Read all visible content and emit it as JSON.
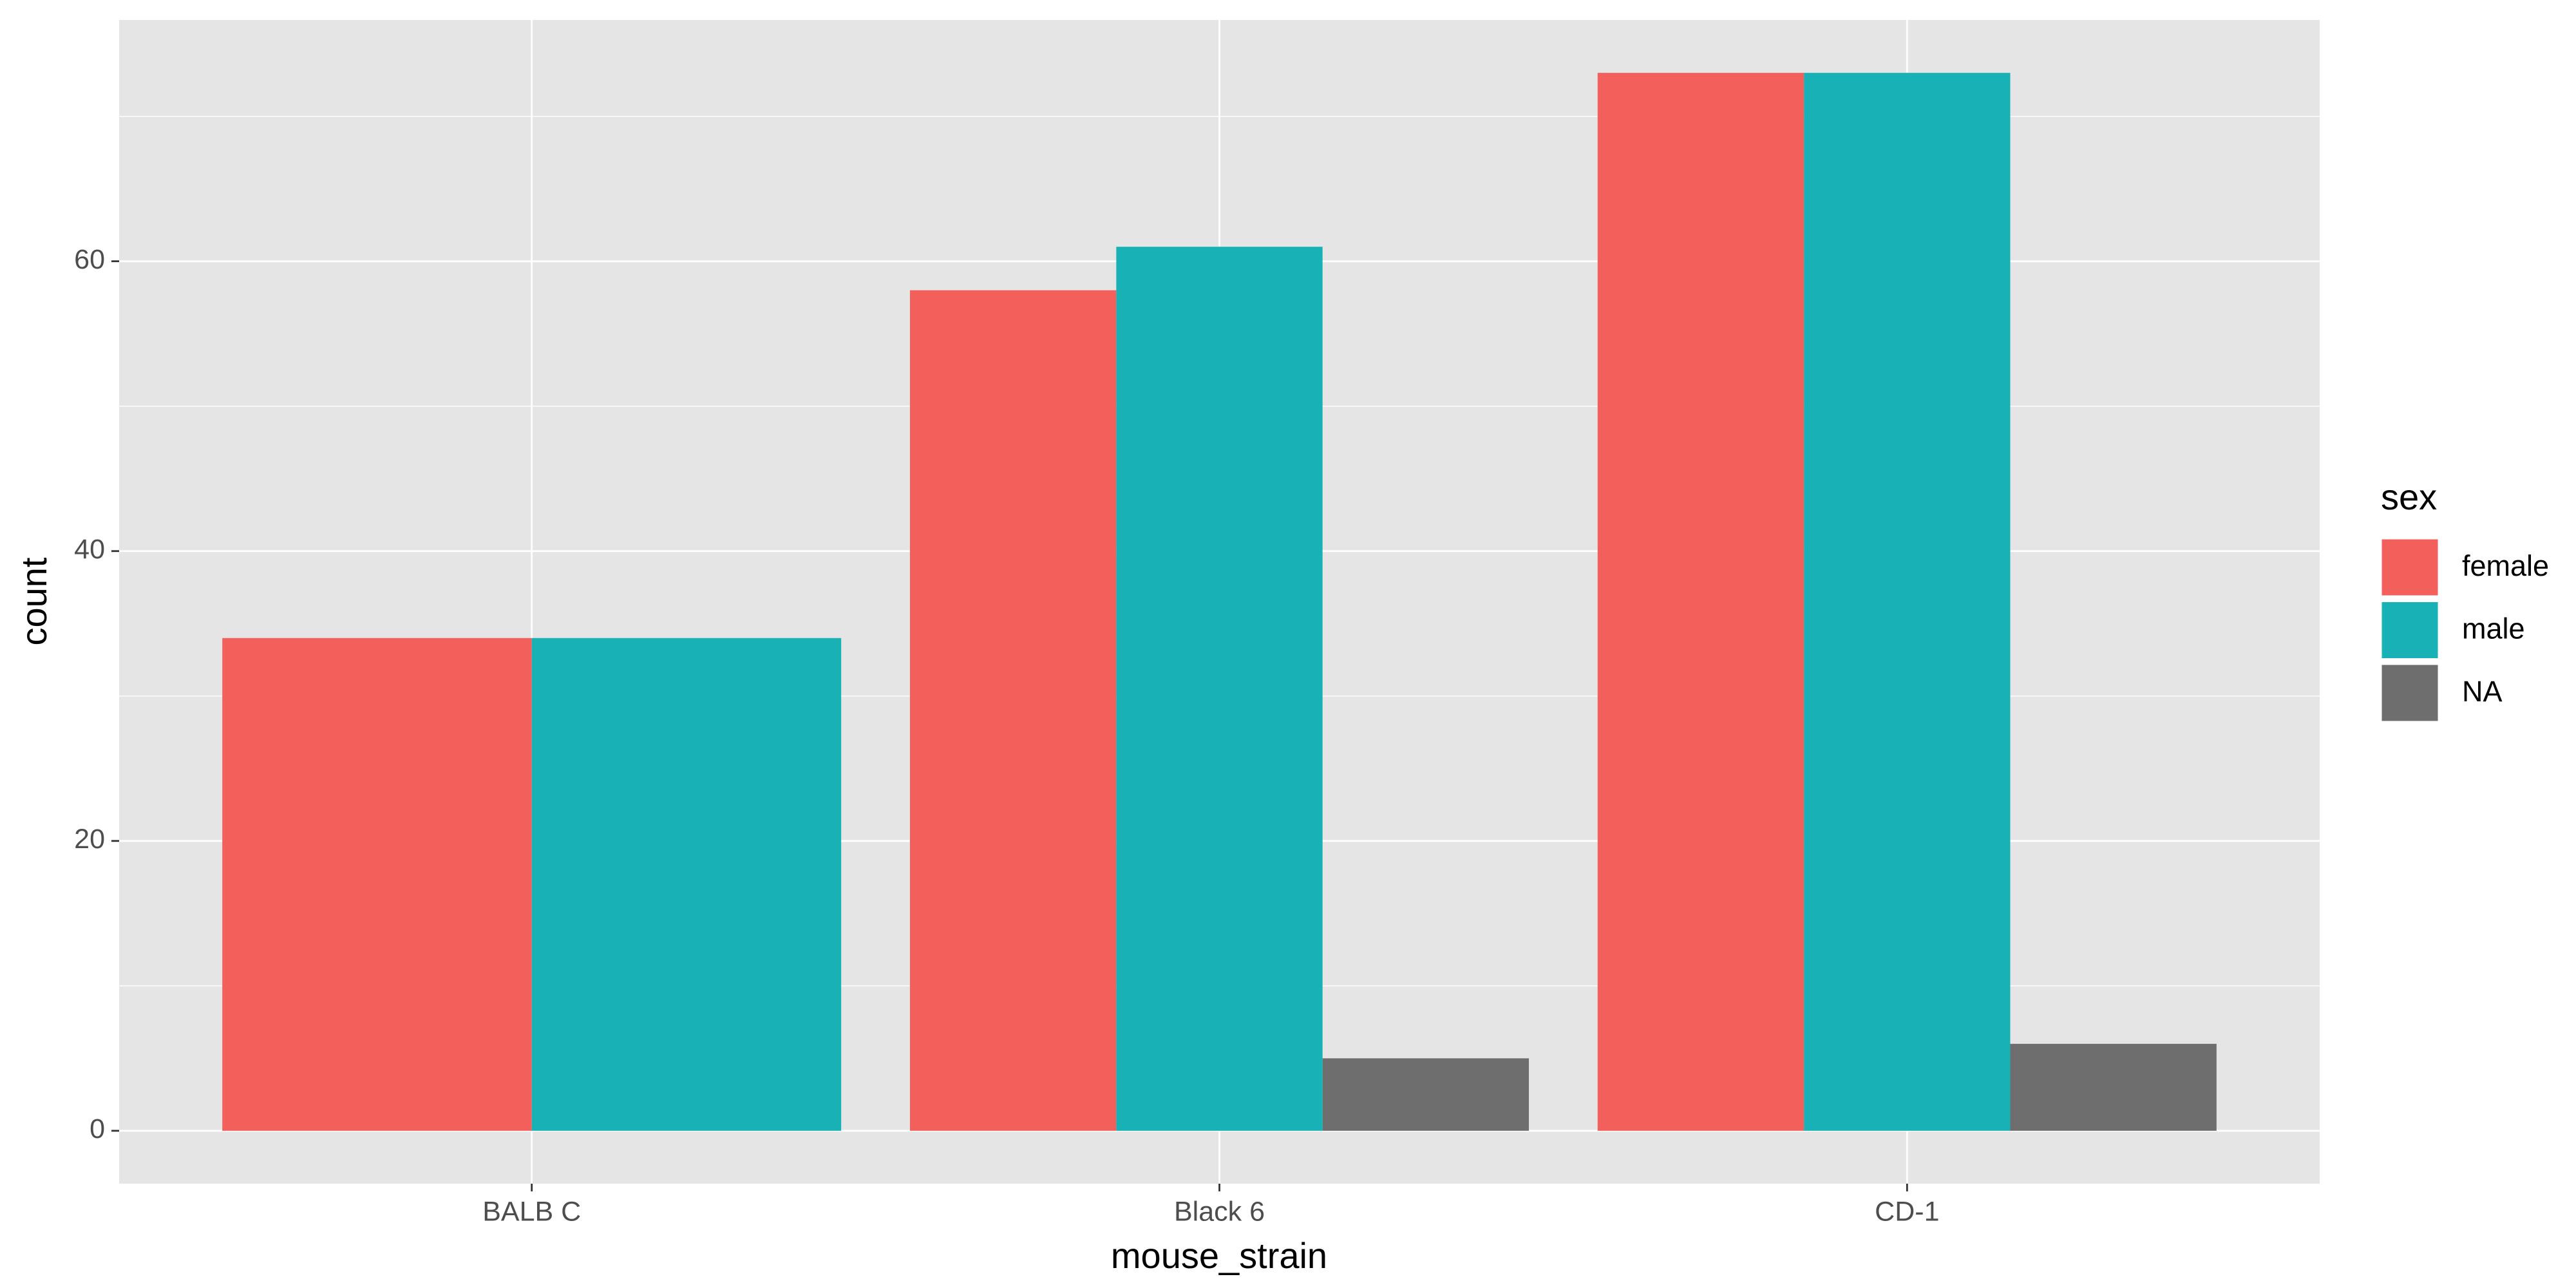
{
  "chart_data": {
    "type": "bar",
    "categories": [
      "BALB C",
      "Black 6",
      "CD-1"
    ],
    "x_label": "mouse_strain",
    "y_label": "count",
    "legend_title": "sex",
    "legend_position": "right",
    "series": [
      {
        "name": "female",
        "color": "#F35F5B",
        "values": [
          34,
          58,
          73
        ]
      },
      {
        "name": "male",
        "color": "#18B2B6",
        "values": [
          34,
          61,
          73
        ]
      },
      {
        "name": "NA",
        "color": "#6E6E6E",
        "values": [
          null,
          5,
          6
        ]
      }
    ],
    "ylim": [
      -3.65,
      76.65
    ],
    "yticks": [
      0,
      20,
      40,
      60
    ],
    "minor_yticks": [
      10,
      30,
      50,
      70
    ],
    "grid": true
  }
}
